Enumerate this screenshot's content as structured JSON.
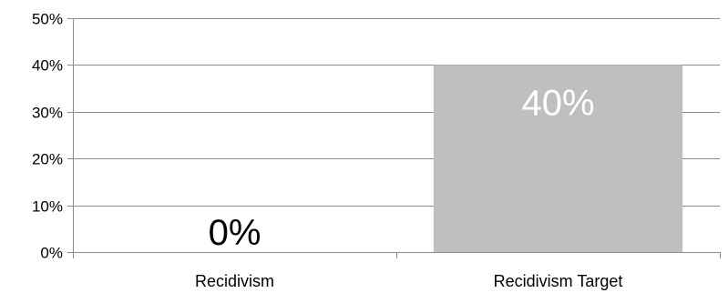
{
  "chart_data": {
    "type": "bar",
    "title": "",
    "xlabel": "",
    "ylabel": "",
    "categories": [
      "Recidivism",
      "Recidivism Target"
    ],
    "values": [
      0,
      40
    ],
    "data_labels": [
      "0%",
      "40%"
    ],
    "ylim": [
      0,
      50
    ],
    "y_ticks": [
      0,
      10,
      20,
      30,
      40,
      50
    ],
    "y_tick_labels": [
      "0%",
      "10%",
      "20%",
      "30%",
      "40%",
      "50%"
    ],
    "grid": true,
    "legend": "none",
    "colors": {
      "bar": "#bfbfbf",
      "gridline": "#8c8c8c",
      "axis": "#8c8c8c",
      "data_label_inside": "#ffffff",
      "data_label_outside": "#000000"
    }
  }
}
